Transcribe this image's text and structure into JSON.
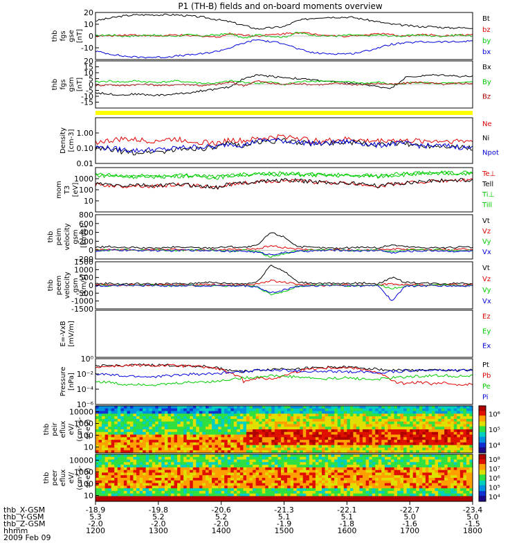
{
  "title": "P1 (TH-B) fields and on-board moments overview",
  "colors": {
    "black": "#000000",
    "red": "#e00000",
    "green": "#00cc00",
    "blue": "#0000dd",
    "darkred": "#b00000",
    "yellow": "#ffff00",
    "frame": "#000000"
  },
  "chart_data": [
    {
      "id": "fgs_gse",
      "type": "line",
      "ylabel": [
        "thb",
        "fgs",
        "gse",
        "[nT]"
      ],
      "ylim": [
        -20,
        20
      ],
      "yticks": [
        -10,
        0,
        10,
        20
      ],
      "series": [
        {
          "name": "Bt",
          "color": "black",
          "values": [
            13,
            15,
            17,
            18,
            18,
            18,
            18,
            17,
            16,
            14,
            12,
            9,
            6,
            7,
            8,
            13,
            15,
            16,
            16,
            16,
            14,
            12,
            10,
            9,
            8,
            8,
            7,
            7,
            7
          ]
        },
        {
          "name": "bz",
          "color": "red",
          "values": [
            0,
            0,
            1,
            1,
            0,
            0,
            1,
            0,
            0,
            -1,
            2,
            1,
            0,
            1,
            2,
            3,
            2,
            1,
            0,
            0,
            1,
            2,
            1,
            0,
            1,
            1,
            0,
            1,
            1
          ]
        },
        {
          "name": "by",
          "color": "green",
          "values": [
            0,
            1,
            0,
            0,
            1,
            0,
            0,
            1,
            0,
            1,
            2,
            -2,
            1,
            0,
            -1,
            3,
            1,
            0,
            0,
            1,
            0,
            1,
            0,
            0,
            1,
            0,
            0,
            1,
            0
          ]
        },
        {
          "name": "bx",
          "color": "blue",
          "values": [
            -13,
            -15,
            -17,
            -18,
            -18,
            -18,
            -17,
            -16,
            -15,
            -13,
            -10,
            -6,
            -3,
            -5,
            -6,
            -11,
            -14,
            -15,
            -15,
            -15,
            -13,
            -10,
            -7,
            -6,
            -5,
            -5,
            -5,
            -5,
            -4
          ]
        }
      ]
    },
    {
      "id": "fgs_gsm",
      "type": "line",
      "ylabel": [
        "thb",
        "fgs",
        "gsm",
        "[nT]"
      ],
      "ylim": [
        -20,
        20
      ],
      "yticks": [
        -15,
        -10,
        -5,
        0,
        5,
        10,
        15,
        20
      ],
      "series": [
        {
          "name": "Bx",
          "color": "black",
          "values": [
            -7,
            -8,
            -9,
            -8,
            -9,
            -9,
            -8,
            -7,
            -5,
            -4,
            -2,
            5,
            8,
            7,
            6,
            5,
            4,
            3,
            2,
            1,
            0,
            -2,
            -3,
            6,
            7,
            8,
            8,
            7,
            7
          ]
        },
        {
          "name": "By",
          "color": "green",
          "values": [
            2,
            3,
            2,
            3,
            2,
            2,
            3,
            2,
            1,
            1,
            3,
            2,
            1,
            2,
            0,
            2,
            3,
            3,
            2,
            2,
            1,
            2,
            0,
            1,
            2,
            1,
            1,
            1,
            2
          ]
        },
        {
          "name": "Bz",
          "color": "darkred",
          "values": [
            -1,
            0,
            -1,
            0,
            0,
            -1,
            0,
            0,
            -1,
            0,
            2,
            -1,
            3,
            1,
            0,
            1,
            0,
            0,
            1,
            0,
            0,
            1,
            0,
            1,
            2,
            1,
            0,
            1,
            1
          ]
        }
      ]
    },
    {
      "id": "density",
      "type": "line",
      "log": true,
      "ylabel": [
        "Density",
        "[cm-3]"
      ],
      "ylim": [
        0.01,
        10
      ],
      "yticks": [
        "0.01",
        "0.10",
        "1.00"
      ],
      "series": [
        {
          "name": "Ne",
          "color": "red",
          "values": [
            0.25,
            0.3,
            0.4,
            0.35,
            0.3,
            0.35,
            0.4,
            0.3,
            0.25,
            0.2,
            0.35,
            0.3,
            0.4,
            0.5,
            0.6,
            0.5,
            0.3,
            0.3,
            0.35,
            0.4,
            0.3,
            0.3,
            0.35,
            0.3,
            0.3,
            0.3,
            0.3,
            0.3,
            0.3
          ]
        },
        {
          "name": "Ni",
          "color": "black",
          "values": [
            0.1,
            0.08,
            0.06,
            0.05,
            0.06,
            0.06,
            0.08,
            0.1,
            0.1,
            0.1,
            0.2,
            0.15,
            0.25,
            0.3,
            0.3,
            0.25,
            0.2,
            0.2,
            0.25,
            0.25,
            0.2,
            0.15,
            0.2,
            0.2,
            0.15,
            0.15,
            0.15,
            0.12,
            0.1
          ]
        },
        {
          "name": "Npot",
          "color": "blue",
          "values": [
            0.12,
            0.1,
            0.08,
            0.07,
            0.08,
            0.08,
            0.1,
            0.12,
            0.12,
            0.12,
            0.2,
            0.15,
            0.3,
            0.35,
            0.3,
            0.25,
            0.22,
            0.2,
            0.25,
            0.28,
            0.2,
            0.15,
            0.2,
            0.2,
            0.15,
            0.14,
            0.14,
            0.12,
            0.1
          ]
        }
      ]
    },
    {
      "id": "temperature",
      "type": "line",
      "log": true,
      "ylabel": [
        "mom",
        "T3",
        "[eV]"
      ],
      "ylim": [
        1,
        10000
      ],
      "yticks": [
        "10",
        "100",
        "1000"
      ],
      "series": [
        {
          "name": "Te⊥",
          "color": "red",
          "values": [
            300,
            250,
            200,
            250,
            200,
            220,
            300,
            250,
            200,
            150,
            300,
            400,
            500,
            600,
            700,
            600,
            500,
            450,
            400,
            350,
            300,
            200,
            300,
            400,
            500,
            600,
            650,
            700,
            700
          ]
        },
        {
          "name": "Tell",
          "color": "black",
          "values": [
            350,
            280,
            220,
            280,
            220,
            240,
            320,
            260,
            200,
            160,
            320,
            420,
            550,
            650,
            750,
            650,
            550,
            480,
            420,
            380,
            320,
            220,
            320,
            420,
            550,
            650,
            700,
            750,
            750
          ]
        },
        {
          "name": "Ti⊥",
          "color": "green",
          "values": [
            2000,
            1800,
            1500,
            1500,
            1500,
            1500,
            1700,
            1800,
            1500,
            1200,
            1800,
            2200,
            2500,
            2500,
            2500,
            2300,
            2000,
            2000,
            1900,
            1800,
            1800,
            1500,
            2000,
            2300,
            2500,
            2700,
            2800,
            2900,
            3000
          ]
        },
        {
          "name": "Till",
          "color": "green",
          "values": [
            2400,
            2100,
            1800,
            1800,
            1700,
            1800,
            2000,
            2100,
            1800,
            1400,
            2100,
            2600,
            3000,
            3000,
            3000,
            2700,
            2400,
            2300,
            2200,
            2100,
            2100,
            1800,
            2400,
            2700,
            3000,
            3200,
            3300,
            3400,
            3500
          ]
        }
      ]
    },
    {
      "id": "peim_velocity",
      "type": "line",
      "ylabel": [
        "thb",
        "peim",
        "velocity",
        "gsm",
        "[km/s]"
      ],
      "ylim": [
        -200,
        800
      ],
      "yticks": [
        -200,
        0,
        200,
        400,
        600,
        800
      ],
      "series": [
        {
          "name": "Vt",
          "color": "black",
          "values": [
            60,
            80,
            50,
            60,
            40,
            50,
            70,
            60,
            50,
            60,
            80,
            60,
            100,
            400,
            300,
            80,
            60,
            50,
            40,
            60,
            70,
            50,
            120,
            80,
            60,
            60,
            50,
            70,
            60
          ]
        },
        {
          "name": "Vz",
          "color": "red",
          "values": [
            10,
            20,
            0,
            10,
            0,
            10,
            20,
            0,
            10,
            0,
            20,
            10,
            30,
            100,
            60,
            20,
            10,
            0,
            10,
            10,
            0,
            10,
            30,
            20,
            10,
            0,
            10,
            20,
            10
          ]
        },
        {
          "name": "Vy",
          "color": "green",
          "values": [
            0,
            -10,
            10,
            0,
            10,
            0,
            -10,
            0,
            10,
            0,
            -20,
            0,
            -30,
            -150,
            -80,
            -20,
            0,
            10,
            0,
            -10,
            0,
            10,
            -40,
            -10,
            0,
            10,
            0,
            -10,
            0
          ]
        },
        {
          "name": "Vx",
          "color": "blue",
          "values": [
            -20,
            -10,
            0,
            -10,
            0,
            -20,
            -10,
            0,
            -10,
            0,
            -30,
            -20,
            -50,
            -100,
            -60,
            -30,
            -20,
            -10,
            0,
            -10,
            -20,
            0,
            -60,
            -30,
            -20,
            -10,
            -20,
            -30,
            -20
          ]
        }
      ]
    },
    {
      "id": "peem_velocity",
      "type": "line",
      "ylabel": [
        "thb",
        "peem",
        "velocity",
        "gsm",
        "[km/s]"
      ],
      "ylim": [
        -1500,
        1500
      ],
      "yticks": [
        -1500,
        -1000,
        -500,
        0,
        500,
        1000,
        1500
      ],
      "series": [
        {
          "name": "Vt",
          "color": "black",
          "values": [
            100,
            120,
            80,
            100,
            80,
            90,
            100,
            90,
            200,
            150,
            120,
            100,
            200,
            1300,
            900,
            200,
            150,
            120,
            100,
            120,
            150,
            100,
            500,
            200,
            150,
            120,
            100,
            150,
            120
          ]
        },
        {
          "name": "Vz",
          "color": "red",
          "values": [
            20,
            40,
            0,
            20,
            0,
            30,
            40,
            0,
            60,
            20,
            40,
            20,
            80,
            300,
            200,
            60,
            30,
            0,
            20,
            30,
            0,
            20,
            120,
            40,
            20,
            0,
            20,
            40,
            20
          ]
        },
        {
          "name": "Vy",
          "color": "green",
          "values": [
            0,
            -20,
            20,
            0,
            20,
            0,
            -20,
            0,
            -30,
            0,
            -40,
            0,
            -80,
            -600,
            -400,
            -60,
            0,
            20,
            0,
            -20,
            0,
            20,
            -200,
            -40,
            0,
            20,
            0,
            -30,
            0
          ]
        },
        {
          "name": "Vx",
          "color": "blue",
          "values": [
            -40,
            -20,
            0,
            -20,
            0,
            -40,
            -20,
            0,
            -60,
            0,
            -60,
            -40,
            -100,
            -500,
            -300,
            -60,
            -40,
            -20,
            0,
            -20,
            -40,
            0,
            -1000,
            -60,
            -40,
            -20,
            -40,
            -60,
            -40
          ]
        }
      ]
    },
    {
      "id": "efield",
      "type": "line",
      "ylabel": [
        "E=-VxB",
        "[mV/m]"
      ],
      "ylim": [
        0,
        1
      ],
      "yticks": [],
      "series": [
        {
          "name": "Ez",
          "color": "red",
          "values": []
        },
        {
          "name": "Ey",
          "color": "green",
          "values": []
        },
        {
          "name": "Ex",
          "color": "blue",
          "values": []
        }
      ]
    },
    {
      "id": "pressure",
      "type": "line",
      "log": true,
      "ylabel": [
        "Pressure",
        "[nPa]"
      ],
      "ylim": [
        1e-06,
        1
      ],
      "yticks": [
        "10⁻⁶",
        "10⁻⁴",
        "10⁻²",
        "10⁰"
      ],
      "series": [
        {
          "name": "Pt",
          "color": "black",
          "values": [
            0.1,
            0.12,
            0.13,
            0.14,
            0.14,
            0.14,
            0.13,
            0.12,
            0.1,
            0.06,
            0.03,
            0.02,
            0.03,
            0.04,
            0.05,
            0.05,
            0.06,
            0.07,
            0.08,
            0.07,
            0.06,
            0.04,
            0.03,
            0.03,
            0.03,
            0.03,
            0.03,
            0.03,
            0.03
          ]
        },
        {
          "name": "Pb",
          "color": "red",
          "values": [
            0.08,
            0.1,
            0.12,
            0.13,
            0.13,
            0.13,
            0.12,
            0.1,
            0.08,
            0.05,
            0.01,
            0.001,
            0.003,
            0.002,
            0.005,
            0.02,
            0.05,
            0.06,
            0.07,
            0.06,
            0.04,
            0.01,
            0.001,
            0.0005,
            0.0008,
            0.0005,
            0.0006,
            0.0004,
            0.0005
          ]
        },
        {
          "name": "Pe",
          "color": "green",
          "values": [
            0.001,
            0.0008,
            0.0004,
            0.0005,
            0.0004,
            0.0004,
            0.0006,
            0.0008,
            0.001,
            0.001,
            0.002,
            0.003,
            0.004,
            0.006,
            0.005,
            0.004,
            0.003,
            0.002,
            0.003,
            0.003,
            0.002,
            0.002,
            0.003,
            0.004,
            0.005,
            0.006,
            0.006,
            0.005,
            0.005
          ]
        },
        {
          "name": "Pi",
          "color": "blue",
          "values": [
            0.01,
            0.008,
            0.005,
            0.005,
            0.004,
            0.005,
            0.007,
            0.009,
            0.01,
            0.01,
            0.02,
            0.02,
            0.03,
            0.03,
            0.03,
            0.025,
            0.02,
            0.02,
            0.02,
            0.02,
            0.02,
            0.015,
            0.02,
            0.025,
            0.03,
            0.03,
            0.03,
            0.03,
            0.03
          ]
        }
      ]
    },
    {
      "id": "peir",
      "type": "heatmap",
      "ylabel": [
        "thb",
        "peir",
        "eflux",
        "eV/",
        "(cm²-s-",
        "sr-eV)"
      ],
      "yticks": [
        "10",
        "100",
        "1000",
        "10000"
      ],
      "colorbar_ticks": [
        "10⁴",
        "10⁵",
        "10⁶"
      ]
    },
    {
      "id": "peer",
      "type": "heatmap",
      "ylabel": [
        "thb",
        "peer",
        "eflux",
        "eV/",
        "(cm²-s-",
        "sr-eV)"
      ],
      "yticks": [
        "10",
        "100",
        "1000",
        "10000"
      ],
      "colorbar_ticks": [
        "10⁴",
        "10⁵",
        "10⁶",
        "10⁷",
        "10⁸"
      ]
    }
  ],
  "axis_rows": [
    {
      "label": "thb_X-GSM",
      "values": [
        "-18.9",
        "-19.8",
        "-20.6",
        "-21.3",
        "-22.1",
        "-22.7",
        "-23.4"
      ]
    },
    {
      "label": "thb_Y-GSM",
      "values": [
        "5.3",
        "5.2",
        "5.2",
        "5.1",
        "5.1",
        "5.0",
        "5.0"
      ]
    },
    {
      "label": "thb_Z-GSM",
      "values": [
        "-2.0",
        "-2.0",
        "-2.0",
        "-1.9",
        "-1.8",
        "-1.6",
        "-1.5"
      ]
    },
    {
      "label": "hhmm",
      "values": [
        "1200",
        "1300",
        "1400",
        "1500",
        "1600",
        "1700",
        "1800"
      ]
    }
  ],
  "date": "2009 Feb 09"
}
